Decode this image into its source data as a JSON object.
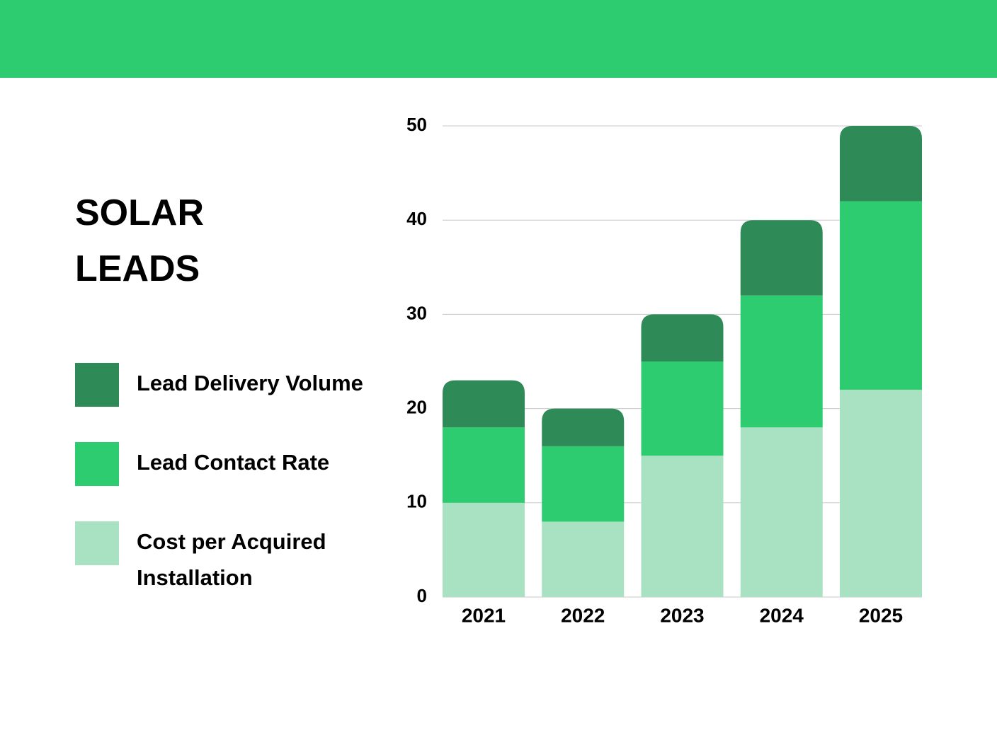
{
  "chart_data": {
    "type": "stacked-bar",
    "title": "SOLAR LEADS",
    "categories": [
      "2021",
      "2022",
      "2023",
      "2024",
      "2025"
    ],
    "series": [
      {
        "name": "Lead Delivery Volume",
        "color": "#2e8b57",
        "values": [
          5,
          4,
          5,
          8,
          8
        ]
      },
      {
        "name": "Lead Contact Rate",
        "color": "#2ecc71",
        "values": [
          8,
          8,
          10,
          14,
          20
        ]
      },
      {
        "name": "Cost per Acquired Installation",
        "color": "#a9e2c2",
        "values": [
          10,
          8,
          15,
          18,
          22
        ]
      }
    ],
    "ylim": [
      0,
      50
    ],
    "yticks": [
      0,
      10,
      20,
      30,
      40,
      50
    ],
    "grid": true,
    "legend": "left"
  }
}
